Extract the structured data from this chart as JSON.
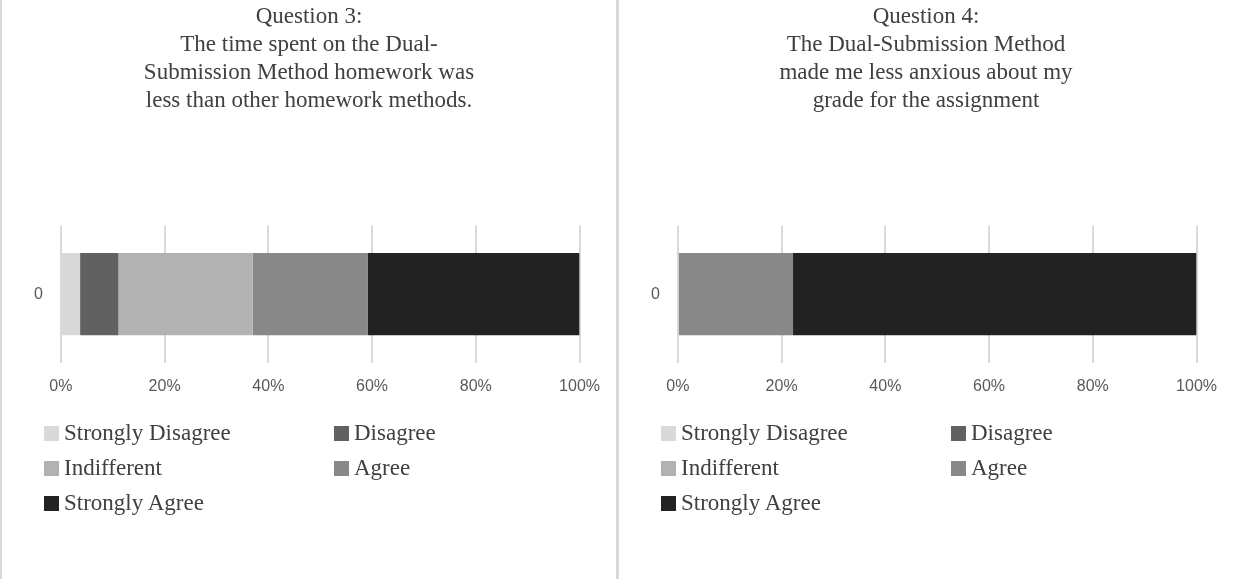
{
  "chart_data": [
    {
      "type": "bar",
      "orientation": "horizontal",
      "stacked": true,
      "title": "Question 3:\nThe time spent on the Dual-\nSubmission Method homework was\nless than other homework methods.",
      "categories": [
        "0"
      ],
      "series": [
        {
          "name": "Strongly Disagree",
          "color": "#d9d9d9",
          "values": [
            3.7
          ]
        },
        {
          "name": "Disagree",
          "color": "#616161",
          "values": [
            7.4
          ]
        },
        {
          "name": "Indifferent",
          "color": "#b2b2b2",
          "values": [
            25.9
          ]
        },
        {
          "name": "Agree",
          "color": "#888888",
          "values": [
            22.2
          ]
        },
        {
          "name": "Strongly Agree",
          "color": "#222222",
          "values": [
            40.8
          ]
        }
      ],
      "xlim": [
        0,
        100
      ],
      "xticks": [
        {
          "value": 0,
          "label": "0%"
        },
        {
          "value": 20,
          "label": "20%"
        },
        {
          "value": 40,
          "label": "40%"
        },
        {
          "value": 60,
          "label": "60%"
        },
        {
          "value": 80,
          "label": "80%"
        },
        {
          "value": 100,
          "label": "100%"
        }
      ],
      "grid": "x",
      "legend": "bottom"
    },
    {
      "type": "bar",
      "orientation": "horizontal",
      "stacked": true,
      "title": "Question 4:\nThe Dual-Submission Method\nmade me less anxious about my\ngrade for the assignment",
      "categories": [
        "0"
      ],
      "series": [
        {
          "name": "Strongly Disagree",
          "color": "#d9d9d9",
          "values": [
            0
          ]
        },
        {
          "name": "Disagree",
          "color": "#616161",
          "values": [
            0
          ]
        },
        {
          "name": "Indifferent",
          "color": "#b2b2b2",
          "values": [
            0
          ]
        },
        {
          "name": "Agree",
          "color": "#888888",
          "values": [
            22.2
          ]
        },
        {
          "name": "Strongly Agree",
          "color": "#222222",
          "values": [
            77.8
          ]
        }
      ],
      "xlim": [
        0,
        100
      ],
      "xticks": [
        {
          "value": 0,
          "label": "0%"
        },
        {
          "value": 20,
          "label": "20%"
        },
        {
          "value": 40,
          "label": "40%"
        },
        {
          "value": 60,
          "label": "60%"
        },
        {
          "value": 80,
          "label": "80%"
        },
        {
          "value": 100,
          "label": "100%"
        }
      ],
      "grid": "x",
      "legend": "bottom"
    }
  ]
}
